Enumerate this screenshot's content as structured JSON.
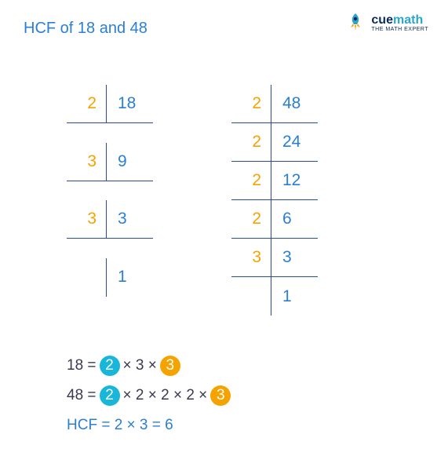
{
  "title": "HCF of 18 and 48",
  "logo": {
    "part1": "cue",
    "part2": "math",
    "tagline": "THE MATH EXPERT"
  },
  "colors": {
    "divisor": "#f4a300",
    "quotient": "#2a7fd4",
    "border": "#2a4a9c",
    "eq_text": "#3a3a52",
    "circle1_bg": "#18b6d8",
    "circle2_bg": "#f4a300",
    "hcf_text": "#2a7fd4"
  },
  "ladders": [
    {
      "number": 18,
      "rows": [
        [
          "2",
          "18"
        ],
        [
          "3",
          "9"
        ],
        [
          "3",
          "3"
        ],
        [
          "",
          "1"
        ]
      ]
    },
    {
      "number": 48,
      "rows": [
        [
          "2",
          "48"
        ],
        [
          "2",
          "24"
        ],
        [
          "2",
          "12"
        ],
        [
          "2",
          "6"
        ],
        [
          "3",
          "3"
        ],
        [
          "",
          "1"
        ]
      ]
    }
  ],
  "eq1": {
    "lhs": "18 =",
    "tokens": [
      {
        "type": "circle",
        "val": "2",
        "bg_key": "circle1_bg"
      },
      {
        "type": "text",
        "val": "× 3 ×"
      },
      {
        "type": "circle",
        "val": "3",
        "bg_key": "circle2_bg"
      }
    ]
  },
  "eq2": {
    "lhs": "48 =",
    "tokens": [
      {
        "type": "circle",
        "val": "2",
        "bg_key": "circle1_bg"
      },
      {
        "type": "text",
        "val": "× 2 × 2 × 2 ×"
      },
      {
        "type": "circle",
        "val": "3",
        "bg_key": "circle2_bg"
      }
    ]
  },
  "hcf": "HCF = 2 × 3 = 6"
}
